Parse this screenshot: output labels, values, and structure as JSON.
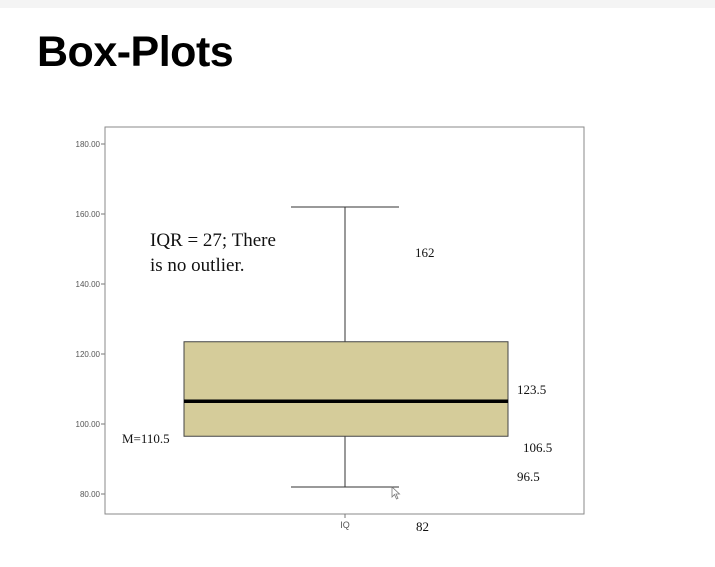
{
  "slide": {
    "title": "Box-Plots"
  },
  "annotations": {
    "iqr_line1": "IQR = 27;  There",
    "iqr_line2": "is no outlier.",
    "max_label": "162",
    "q3_label": "123.5",
    "median_label": "106.5",
    "q1_label": "96.5",
    "min_label": "82",
    "mean_label": "M=110.5"
  },
  "chart_data": {
    "type": "box",
    "categories": [
      "IQ"
    ],
    "ylim": [
      75,
      185
    ],
    "yticks": [
      80,
      100,
      120,
      140,
      160,
      180
    ],
    "ytick_labels": [
      "80.00",
      "100.00",
      "120.00",
      "140.00",
      "160.00",
      "180.00"
    ],
    "box": {
      "whisker_low": 82,
      "q1": 96.5,
      "median": 106.5,
      "q3": 123.5,
      "whisker_high": 162
    },
    "box_color": "#d5cc9a"
  }
}
